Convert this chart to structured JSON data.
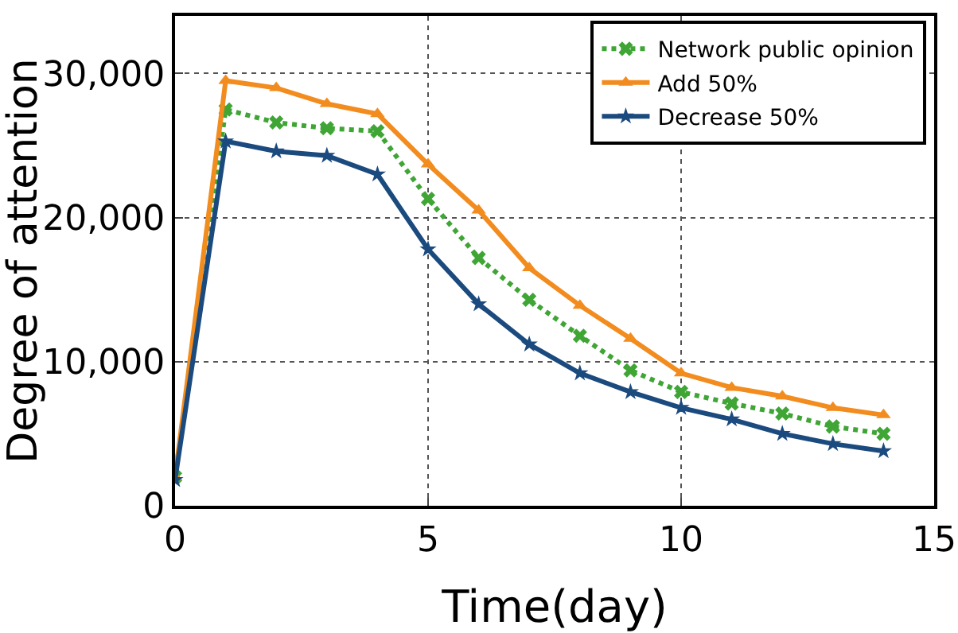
{
  "chart_data": {
    "type": "line",
    "xlabel": "Time(day)",
    "ylabel": "Degree of attention",
    "x": [
      0,
      1,
      2,
      3,
      4,
      5,
      6,
      7,
      8,
      9,
      10,
      11,
      12,
      13,
      14
    ],
    "xlim": [
      0,
      15
    ],
    "xticks": [
      0,
      5,
      10,
      15
    ],
    "ylim": [
      0,
      34000
    ],
    "yticks": [
      {
        "value": 0,
        "label": "0"
      },
      {
        "value": 10000,
        "label": "10,000"
      },
      {
        "value": 20000,
        "label": "20,000"
      },
      {
        "value": 30000,
        "label": "30,000"
      }
    ],
    "grid": true,
    "legend": "top right",
    "series": [
      {
        "name": "Network public opinion",
        "color": "#3fa535",
        "marker": "cross",
        "line_style": "dotted",
        "values": [
          2000,
          27500,
          26600,
          26200,
          26000,
          21300,
          17200,
          14300,
          11800,
          9400,
          7900,
          7100,
          6400,
          5500,
          5000
        ]
      },
      {
        "name": "Add 50%",
        "color": "#f28c1e",
        "marker": "triangle",
        "line_style": "solid",
        "values": [
          2000,
          29500,
          29000,
          27900,
          27200,
          23700,
          20500,
          16500,
          13900,
          11600,
          9200,
          8200,
          7600,
          6800,
          6300
        ]
      },
      {
        "name": "Decrease 50%",
        "color": "#1b4a7e",
        "marker": "star",
        "line_style": "solid",
        "values": [
          1800,
          25300,
          24600,
          24300,
          23000,
          17800,
          14000,
          11200,
          9200,
          7900,
          6800,
          6000,
          5000,
          4300,
          3800
        ]
      }
    ]
  }
}
